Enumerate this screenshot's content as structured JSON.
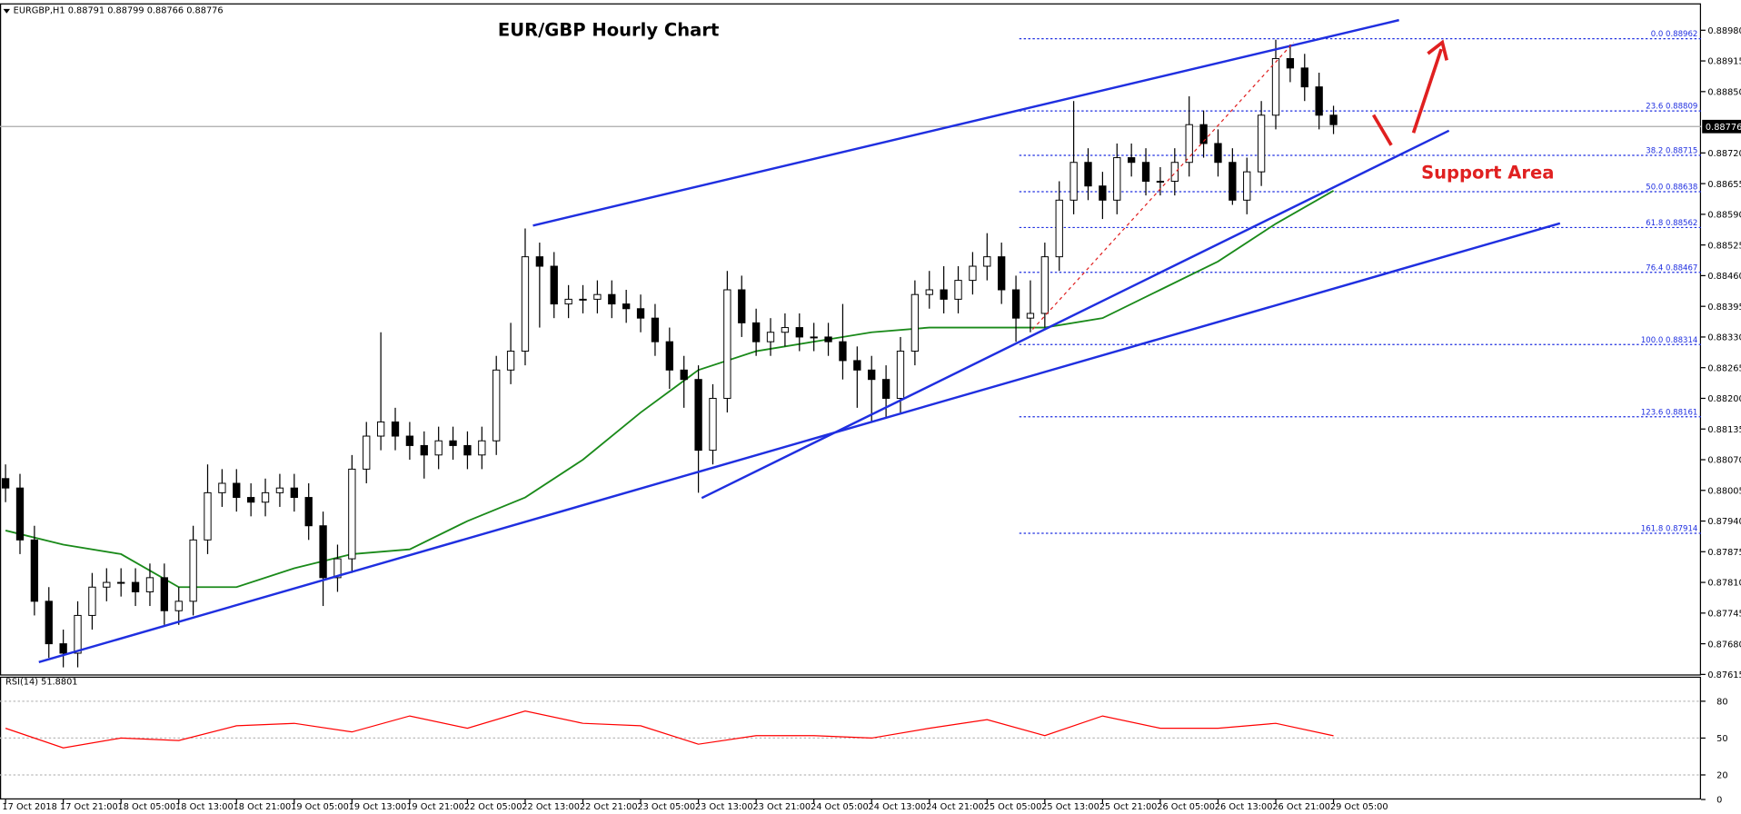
{
  "header": "EURGBP,H1 0.88791 0.88799 0.88766 0.88776",
  "chart_data": {
    "type": "candlestick",
    "title": "EUR/GBP Hourly Chart",
    "annotation": "Support Area",
    "open": [
      0.8803,
      0.8801,
      0.879,
      0.8777,
      0.8768,
      0.8766,
      0.8774,
      0.878,
      0.8781,
      0.8781,
      0.8779,
      0.8782,
      0.8775,
      0.8777,
      0.879,
      0.88,
      0.8802,
      0.8799,
      0.8798,
      0.88,
      0.8801,
      0.8799,
      0.8793,
      0.8782,
      0.8786,
      0.8805,
      0.8812,
      0.8815,
      0.8812,
      0.881,
      0.8808,
      0.8811,
      0.881,
      0.8808,
      0.8811,
      0.8826,
      0.883,
      0.885,
      0.8848,
      0.884,
      0.8841,
      0.8841,
      0.8842,
      0.884,
      0.8839,
      0.8837,
      0.8832,
      0.8826,
      0.8824,
      0.8809,
      0.882,
      0.8843,
      0.8836,
      0.8832,
      0.8834,
      0.8835,
      0.8833,
      0.8833,
      0.8832,
      0.8828,
      0.8826,
      0.8824,
      0.882,
      0.883,
      0.8842,
      0.8843,
      0.8841,
      0.8845,
      0.8848,
      0.885,
      0.8843,
      0.8837,
      0.8838,
      0.885,
      0.8862,
      0.887,
      0.8865,
      0.8862,
      0.8871,
      0.887,
      0.8866,
      0.8866,
      0.887,
      0.8878,
      0.8874,
      0.887,
      0.8862,
      0.8868,
      0.888,
      0.8892,
      0.889,
      0.8886,
      0.888
    ],
    "high": [
      0.8806,
      0.8804,
      0.8793,
      0.878,
      0.8771,
      0.8777,
      0.8783,
      0.8784,
      0.8784,
      0.8784,
      0.8785,
      0.8785,
      0.878,
      0.8793,
      0.8806,
      0.8805,
      0.8805,
      0.8802,
      0.8803,
      0.8804,
      0.8804,
      0.8802,
      0.8796,
      0.8789,
      0.8808,
      0.8815,
      0.8834,
      0.8818,
      0.8815,
      0.8813,
      0.8814,
      0.8814,
      0.8813,
      0.8814,
      0.8829,
      0.8836,
      0.8856,
      0.8853,
      0.8851,
      0.8844,
      0.8844,
      0.8845,
      0.8845,
      0.8843,
      0.8842,
      0.884,
      0.8835,
      0.8829,
      0.8827,
      0.8823,
      0.8847,
      0.8846,
      0.8839,
      0.8837,
      0.8838,
      0.8838,
      0.8836,
      0.8836,
      0.884,
      0.8831,
      0.8829,
      0.8827,
      0.8833,
      0.8845,
      0.8847,
      0.8848,
      0.8848,
      0.8851,
      0.8855,
      0.8853,
      0.8846,
      0.8845,
      0.8853,
      0.8866,
      0.8883,
      0.8873,
      0.8868,
      0.8874,
      0.8874,
      0.8873,
      0.8869,
      0.8873,
      0.8884,
      0.8881,
      0.8877,
      0.8873,
      0.8871,
      0.8883,
      0.8896,
      0.8895,
      0.8893,
      0.8889,
      0.8882
    ],
    "low": [
      0.8798,
      0.8787,
      0.8774,
      0.8765,
      0.8763,
      0.8763,
      0.8771,
      0.8777,
      0.8778,
      0.8776,
      0.8776,
      0.8772,
      0.8772,
      0.8774,
      0.8787,
      0.8797,
      0.8796,
      0.8795,
      0.8795,
      0.8797,
      0.8796,
      0.879,
      0.8776,
      0.8779,
      0.8783,
      0.8802,
      0.8809,
      0.8809,
      0.8807,
      0.8803,
      0.8805,
      0.8807,
      0.8805,
      0.8805,
      0.8808,
      0.8823,
      0.8827,
      0.8835,
      0.8837,
      0.8837,
      0.8838,
      0.8838,
      0.8837,
      0.8836,
      0.8834,
      0.8829,
      0.8822,
      0.8818,
      0.88,
      0.8806,
      0.8817,
      0.8833,
      0.8829,
      0.8829,
      0.8831,
      0.883,
      0.883,
      0.8829,
      0.8824,
      0.8818,
      0.8815,
      0.8816,
      0.8817,
      0.8827,
      0.8839,
      0.8838,
      0.8838,
      0.8842,
      0.8845,
      0.884,
      0.8832,
      0.8834,
      0.8835,
      0.8847,
      0.8859,
      0.8862,
      0.8858,
      0.8859,
      0.8867,
      0.8863,
      0.8863,
      0.8863,
      0.8867,
      0.8871,
      0.8867,
      0.8861,
      0.8859,
      0.8865,
      0.8877,
      0.8887,
      0.8883,
      0.8877,
      0.8876
    ],
    "close": [
      0.8801,
      0.879,
      0.8777,
      0.8768,
      0.8766,
      0.8774,
      0.878,
      0.8781,
      0.8781,
      0.8779,
      0.8782,
      0.8775,
      0.8777,
      0.879,
      0.88,
      0.8802,
      0.8799,
      0.8798,
      0.88,
      0.8801,
      0.8799,
      0.8793,
      0.8782,
      0.8786,
      0.8805,
      0.8812,
      0.8815,
      0.8812,
      0.881,
      0.8808,
      0.8811,
      0.881,
      0.8808,
      0.8811,
      0.8826,
      0.883,
      0.885,
      0.8848,
      0.884,
      0.8841,
      0.8841,
      0.8842,
      0.884,
      0.8839,
      0.8837,
      0.8832,
      0.8826,
      0.8824,
      0.8809,
      0.882,
      0.8843,
      0.8836,
      0.8832,
      0.8834,
      0.8835,
      0.8833,
      0.8833,
      0.8832,
      0.8828,
      0.8826,
      0.8824,
      0.882,
      0.883,
      0.8842,
      0.8843,
      0.8841,
      0.8845,
      0.8848,
      0.885,
      0.8843,
      0.8837,
      0.8838,
      0.885,
      0.8862,
      0.887,
      0.8865,
      0.8862,
      0.8871,
      0.887,
      0.8866,
      0.8866,
      0.887,
      0.8878,
      0.8874,
      0.887,
      0.8862,
      0.8868,
      0.888,
      0.8892,
      0.889,
      0.8886,
      0.888,
      0.8878
    ],
    "ma": {
      "color": "#1a8a1a",
      "x": [
        0,
        4,
        8,
        12,
        16,
        20,
        24,
        28,
        32,
        36,
        40,
        44,
        48,
        52,
        56,
        60,
        64,
        68,
        72,
        76,
        80,
        84,
        88,
        92
      ],
      "values": [
        0.8792,
        0.8789,
        0.8787,
        0.878,
        0.878,
        0.8784,
        0.8787,
        0.8788,
        0.8794,
        0.8799,
        0.8807,
        0.8817,
        0.8826,
        0.883,
        0.8832,
        0.8834,
        0.8835,
        0.8835,
        0.8835,
        0.8837,
        0.8843,
        0.8849,
        0.8857,
        0.8864
      ]
    },
    "current_price": 0.88776,
    "fib_levels": [
      {
        "level": "0.0",
        "price": 0.88962
      },
      {
        "level": "23.6",
        "price": 0.88809
      },
      {
        "level": "38.2",
        "price": 0.88715
      },
      {
        "level": "50.0",
        "price": 0.88638
      },
      {
        "level": "61.8",
        "price": 0.88562
      },
      {
        "level": "76.4",
        "price": 0.88467
      },
      {
        "level": "100.0",
        "price": 0.88314
      },
      {
        "level": "123.6",
        "price": 0.88161
      },
      {
        "level": "161.8",
        "price": 0.87914
      }
    ],
    "ylim": [
      0.87615,
      0.89037
    ],
    "yticks": [
      {
        "value": 0.8898,
        "label": "0.88980"
      },
      0.88915,
      {
        "value": 0.8885,
        "label": "0.88850"
      },
      {
        "value": 0.8872,
        "label": "0.88720"
      },
      0.88655,
      {
        "value": 0.8859,
        "label": "0.88590"
      },
      0.88525,
      {
        "value": 0.8846,
        "label": "0.88460"
      },
      0.88395,
      {
        "value": 0.8833,
        "label": "0.88330"
      },
      0.88265,
      {
        "value": 0.882,
        "label": "0.88200"
      },
      0.88135,
      {
        "value": 0.8807,
        "label": "0.88070"
      },
      0.88005,
      {
        "value": 0.8794,
        "label": "0.87940"
      },
      0.87875,
      {
        "value": 0.8781,
        "label": "0.87810"
      },
      0.87745,
      {
        "value": 0.8768,
        "label": "0.87680"
      },
      0.87615
    ],
    "xtick_labels": [
      "17 Oct 2018",
      "17 Oct 21:00",
      "18 Oct 05:00",
      "18 Oct 13:00",
      "18 Oct 21:00",
      "19 Oct 05:00",
      "19 Oct 13:00",
      "19 Oct 21:00",
      "22 Oct 05:00",
      "22 Oct 13:00",
      "22 Oct 21:00",
      "23 Oct 05:00",
      "23 Oct 13:00",
      "23 Oct 21:00",
      "24 Oct 05:00",
      "24 Oct 13:00",
      "24 Oct 21:00",
      "25 Oct 05:00",
      "25 Oct 13:00",
      "25 Oct 21:00",
      "26 Oct 05:00",
      "26 Oct 13:00",
      "26 Oct 21:00",
      "29 Oct 05:00"
    ],
    "rsi": {
      "type": "line",
      "title": "RSI(14) 51.8801",
      "color": "#ff0000",
      "x": [
        0,
        4,
        8,
        12,
        16,
        20,
        24,
        28,
        32,
        36,
        40,
        44,
        48,
        52,
        56,
        60,
        64,
        68,
        72,
        76,
        80,
        84,
        88,
        92
      ],
      "values": [
        58,
        42,
        50,
        48,
        60,
        62,
        55,
        68,
        58,
        72,
        62,
        60,
        45,
        52,
        52,
        50,
        58,
        65,
        52,
        68,
        58,
        58,
        62,
        51.88
      ],
      "ylim": [
        0,
        100
      ],
      "yticks": [
        0,
        20,
        50,
        80
      ]
    }
  }
}
